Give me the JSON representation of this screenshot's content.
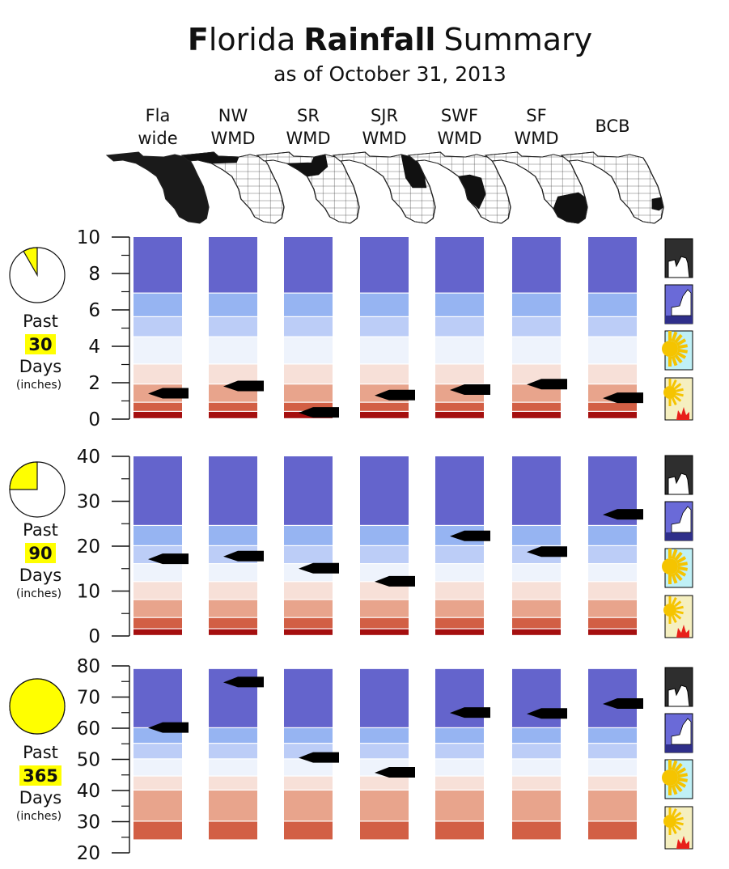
{
  "title": {
    "f": "F",
    "lorida": "lorida",
    "rainfall": "Rainfall",
    "summary": "Summary"
  },
  "subtitle": "as of October 31, 2013",
  "regions": [
    {
      "line1": "Fla",
      "line2": "wide"
    },
    {
      "line1": "NW",
      "line2": "WMD"
    },
    {
      "line1": "SR",
      "line2": "WMD"
    },
    {
      "line1": "SJR",
      "line2": "WMD"
    },
    {
      "line1": "SWF",
      "line2": "WMD"
    },
    {
      "line1": "SF",
      "line2": "WMD"
    },
    {
      "line1": "BCB",
      "line2": ""
    }
  ],
  "band_colors": [
    "#a50f0f",
    "#d25f45",
    "#e8a48c",
    "#f7e0d8",
    "#eef3fc",
    "#bccdf7",
    "#96b4f2",
    "#6464cc"
  ],
  "chart_data": [
    {
      "type": "bar",
      "label_past": "Past",
      "label_days": "30",
      "label_word": "Days",
      "label_units": "(inches)",
      "period_fraction": 0.083,
      "ylim": [
        0,
        10
      ],
      "y_ticks": [
        "0",
        "2",
        "4",
        "6",
        "8",
        "10"
      ],
      "bands": [
        [
          0,
          0.4
        ],
        [
          0.4,
          0.9
        ],
        [
          0.9,
          1.9
        ],
        [
          1.9,
          3
        ],
        [
          3,
          4.5
        ],
        [
          4.5,
          5.6
        ],
        [
          5.6,
          6.9
        ],
        [
          6.9,
          10
        ]
      ],
      "values": [
        1.4,
        1.8,
        0.35,
        1.3,
        1.6,
        1.9,
        1.15
      ]
    },
    {
      "type": "bar",
      "label_past": "Past",
      "label_days": "90",
      "label_word": "Days",
      "label_units": "(inches)",
      "period_fraction": 0.25,
      "ylim": [
        0,
        40
      ],
      "y_ticks": [
        "0",
        "10",
        "20",
        "30",
        "40"
      ],
      "bands": [
        [
          0,
          1.5
        ],
        [
          1.5,
          4
        ],
        [
          4,
          8
        ],
        [
          8,
          12
        ],
        [
          12,
          16
        ],
        [
          16,
          20
        ],
        [
          20,
          24.5
        ],
        [
          24.5,
          40
        ]
      ],
      "values": [
        17.1,
        17.7,
        15,
        12.1,
        22.2,
        18.7,
        27
      ]
    },
    {
      "type": "bar",
      "label_past": "Past",
      "label_days": "365",
      "label_word": "Days",
      "label_units": "(inches)",
      "period_fraction": 1.0,
      "ylim": [
        20,
        80
      ],
      "y_ticks": [
        "20",
        "30",
        "40",
        "50",
        "60",
        "70",
        "80"
      ],
      "bands": [
        [
          24,
          30
        ],
        [
          30,
          40
        ],
        [
          40,
          44.5
        ],
        [
          44.5,
          50
        ],
        [
          50,
          55
        ],
        [
          55,
          60
        ],
        [
          60,
          79
        ]
      ],
      "values": [
        60.1,
        74.7,
        50.5,
        45.7,
        64.9,
        64.6,
        67.8
      ]
    }
  ],
  "legend_icons": [
    "flood-icon",
    "wet-icon",
    "sun-icon",
    "drought-fire-icon"
  ]
}
